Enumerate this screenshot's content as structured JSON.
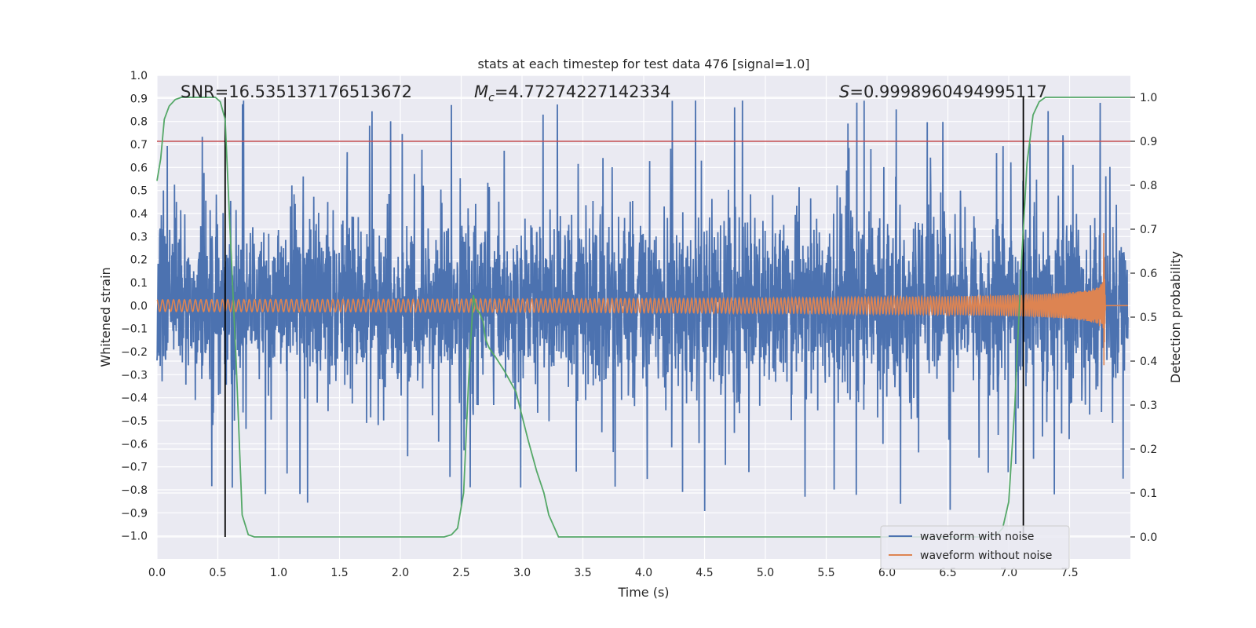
{
  "chart_data": {
    "type": "line",
    "title": "stats at each timestep for test data 476 [signal=1.0]",
    "xlabel": "Time (s)",
    "ylabel": "Whitened strain",
    "y2label": "Detection probability",
    "xlim": [
      0.0,
      8.0
    ],
    "ylim": [
      -1.1,
      1.0
    ],
    "y2lim": [
      -0.05,
      1.05
    ],
    "xticks": [
      "0.0",
      "0.5",
      "1.0",
      "1.5",
      "2.0",
      "2.5",
      "3.0",
      "3.5",
      "4.0",
      "4.5",
      "5.0",
      "5.5",
      "6.0",
      "6.5",
      "7.0",
      "7.5"
    ],
    "yticks": [
      "1.0",
      "0.9",
      "0.8",
      "0.7",
      "0.6",
      "0.5",
      "0.4",
      "0.3",
      "0.2",
      "0.1",
      "0.0",
      "−0.1",
      "−0.2",
      "−0.3",
      "−0.4",
      "−0.5",
      "−0.6",
      "−0.7",
      "−0.8",
      "−0.9",
      "−1.0"
    ],
    "y2ticks": [
      "1.0",
      "0.9",
      "0.8",
      "0.7",
      "0.6",
      "0.5",
      "0.4",
      "0.3",
      "0.2",
      "0.1",
      "0.0"
    ],
    "annotations": {
      "snr": "SNR=16.535137176513672",
      "mc_sym": "M",
      "mc_sub": "c",
      "mc_val": "=4.77274227142334",
      "s_sym": "S",
      "s_val": "=0.9998960494995117"
    },
    "threshold_y2": 0.9,
    "vlines_x": [
      0.56,
      7.12
    ],
    "legend": [
      "waveform with noise",
      "waveform without noise"
    ],
    "legend_position": "lower-right",
    "series": [
      {
        "name": "Detection probability",
        "axis": "right",
        "x": [
          0.0,
          0.03,
          0.06,
          0.1,
          0.15,
          0.2,
          0.3,
          0.4,
          0.48,
          0.52,
          0.56,
          0.6,
          0.65,
          0.7,
          0.75,
          0.8,
          1.0,
          2.0,
          2.36,
          2.42,
          2.47,
          2.52,
          2.56,
          2.6,
          2.62,
          2.65,
          2.68,
          2.7,
          2.73,
          2.78,
          2.85,
          2.95,
          3.05,
          3.12,
          3.18,
          3.22,
          3.3,
          3.5,
          6.8,
          6.9,
          6.95,
          7.0,
          7.05,
          7.1,
          7.15,
          7.2,
          7.25,
          7.3,
          7.4,
          7.6,
          7.8,
          8.0
        ],
        "y": [
          0.81,
          0.86,
          0.95,
          0.98,
          0.995,
          1.0,
          1.0,
          1.0,
          1.0,
          0.99,
          0.95,
          0.7,
          0.4,
          0.05,
          0.005,
          0.0,
          0.0,
          0.0,
          0.0,
          0.005,
          0.02,
          0.1,
          0.35,
          0.55,
          0.52,
          0.51,
          0.49,
          0.45,
          0.43,
          0.41,
          0.38,
          0.33,
          0.22,
          0.15,
          0.1,
          0.05,
          0.0,
          0.0,
          0.0,
          0.005,
          0.02,
          0.08,
          0.3,
          0.6,
          0.85,
          0.96,
          0.99,
          1.0,
          1.0,
          1.0,
          1.0,
          1.0
        ]
      },
      {
        "name": "waveform with noise",
        "axis": "left",
        "description": "whitened strain noise, envelope about ±0.45 with spikes up to ±0.9",
        "envelope": 0.45,
        "peak": 0.9
      },
      {
        "name": "waveform without noise",
        "axis": "left",
        "description": "chirp signal, amplitude ~0.03 growing to ~0.35 at merger near t=7.78 s, flat after",
        "amp_start": 0.03,
        "amp_peak": 0.35,
        "merger_time": 7.78,
        "end_time": 7.98
      }
    ],
    "colors": {
      "noise": "#4c72b0",
      "signal": "#dd8452",
      "prob": "#55a868",
      "threshold": "#c44e52",
      "vline": "#000000",
      "axes_bg": "#eaeaf2",
      "grid": "#ffffff"
    }
  }
}
